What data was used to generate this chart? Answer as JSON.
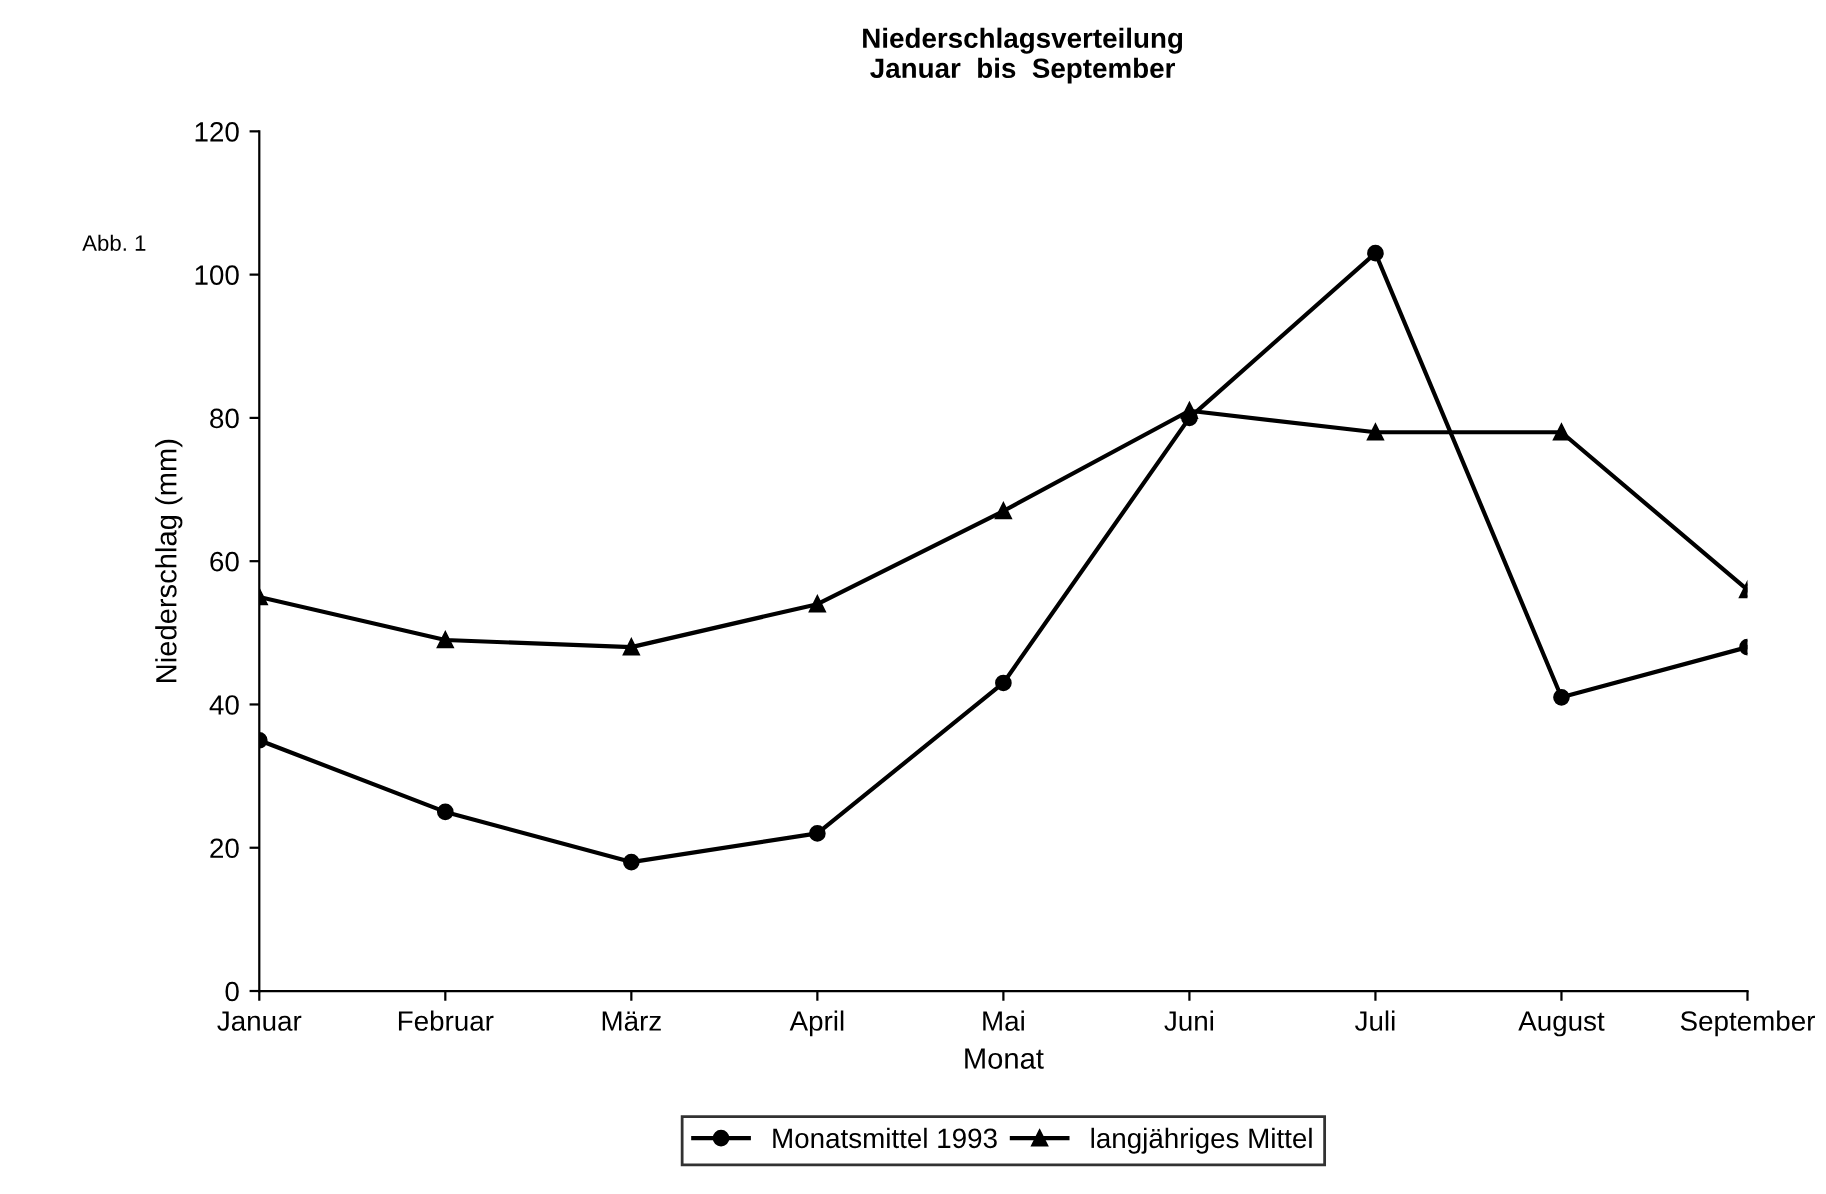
{
  "chart_data": {
    "type": "line",
    "title": "Niederschlagsverteilung\nJanuar  bis  September",
    "xlabel": "Monat",
    "ylabel": "Niederschlag (mm)",
    "annotations": [
      "Abb. 1"
    ],
    "categories": [
      "Januar",
      "Februar",
      "März",
      "April",
      "Mai",
      "Juni",
      "Juli",
      "August",
      "September"
    ],
    "series": [
      {
        "name": "Monatsmittel 1993",
        "color": "#000000",
        "marker": "circle",
        "values": [
          35,
          25,
          18,
          22,
          43,
          80,
          103,
          41,
          48
        ]
      },
      {
        "name": "langjähriges Mittel",
        "color": "#000000",
        "marker": "triangle",
        "values": [
          55,
          49,
          48,
          54,
          67,
          81,
          78,
          78,
          56
        ]
      }
    ],
    "ylim": [
      0,
      120
    ],
    "yticks": [
      0,
      20,
      40,
      60,
      80,
      100,
      120
    ],
    "grid": false,
    "legend": "bottom",
    "line_style": "solid"
  }
}
